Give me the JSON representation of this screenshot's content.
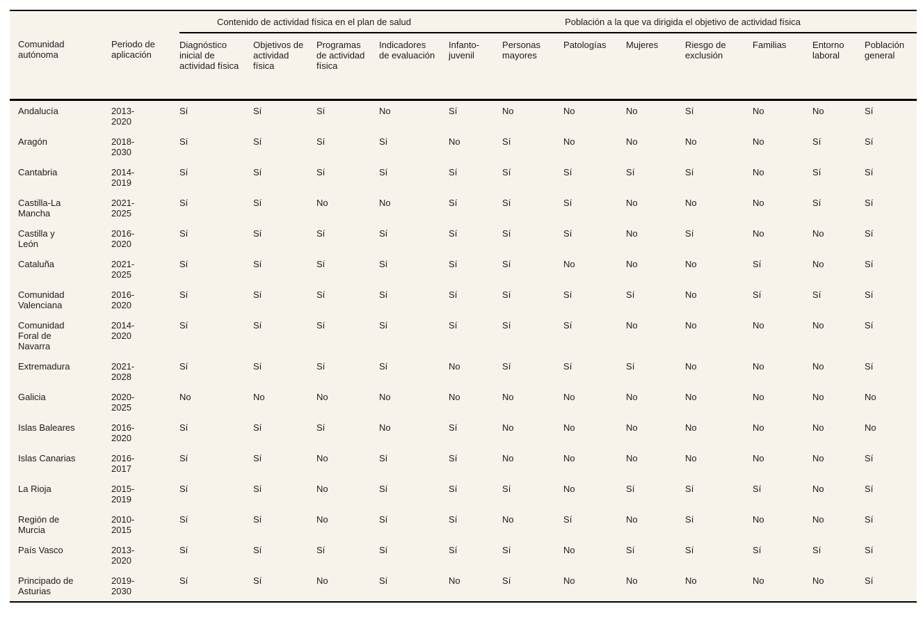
{
  "page": {
    "background_color": "#ffffff",
    "table_background_color": "#f7f3ea",
    "text_color": "#1b1b1b",
    "rule_color": "#000000"
  },
  "table": {
    "group_headers": [
      {
        "label": "Contenido de actividad física en el plan de salud",
        "colspan": 4
      },
      {
        "label": "Población a la que va dirigida el objetivo de actividad física",
        "colspan": 8
      }
    ],
    "columns": [
      {
        "id": "comunidad-autonoma",
        "label": "Comunidad autónoma"
      },
      {
        "id": "periodo-aplicacion",
        "label": "Periodo de aplicación"
      },
      {
        "id": "diagnostico-inicial",
        "label": "Diagnóstico inicial de actividad física"
      },
      {
        "id": "objetivos",
        "label": "Objetivos de actividad física"
      },
      {
        "id": "programas",
        "label": "Programas de actividad física"
      },
      {
        "id": "indicadores",
        "label": "Indicadores de evaluación"
      },
      {
        "id": "infanto-juvenil",
        "label": "Infanto-juvenil"
      },
      {
        "id": "personas-mayores",
        "label": "Personas mayores"
      },
      {
        "id": "patologias",
        "label": "Patologías"
      },
      {
        "id": "mujeres",
        "label": "Mujeres"
      },
      {
        "id": "riesgo-exclusion",
        "label": "Riesgo de exclusión"
      },
      {
        "id": "familias",
        "label": "Familias"
      },
      {
        "id": "entorno-laboral",
        "label": "Entorno laboral"
      },
      {
        "id": "poblacion-general",
        "label": "Población general"
      }
    ],
    "rows": [
      {
        "community": "Andalucía",
        "period": "2013-2020",
        "values": [
          "Sí",
          "Sí",
          "Sí",
          "No",
          "Sí",
          "No",
          "No",
          "No",
          "Sí",
          "No",
          "No",
          "Sí"
        ]
      },
      {
        "community": "Aragón",
        "period": "2018-2030",
        "values": [
          "Sí",
          "Sí",
          "Sí",
          "Sí",
          "No",
          "Sí",
          "No",
          "No",
          "No",
          "No",
          "Sí",
          "Sí"
        ]
      },
      {
        "community": "Cantabria",
        "period": "2014-2019",
        "values": [
          "Sí",
          "Sí",
          "Sí",
          "Sí",
          "Sí",
          "Sí",
          "Sí",
          "Sí",
          "Sí",
          "No",
          "Sí",
          "Sí"
        ]
      },
      {
        "community": "Castilla-La Mancha",
        "period": "2021-2025",
        "values": [
          "Sí",
          "Sí",
          "No",
          "No",
          "Sí",
          "Sí",
          "Sí",
          "No",
          "No",
          "No",
          "Sí",
          "Sí"
        ]
      },
      {
        "community": "Castilla y León",
        "period": "2016-2020",
        "values": [
          "Sí",
          "Sí",
          "Sí",
          "Sí",
          "Sí",
          "Sí",
          "Sí",
          "No",
          "Sí",
          "No",
          "No",
          "Sí"
        ]
      },
      {
        "community": "Cataluña",
        "period": "2021-2025",
        "values": [
          "Sí",
          "Sí",
          "Sí",
          "Sí",
          "Sí",
          "Sí",
          "No",
          "No",
          "No",
          "Sí",
          "No",
          "Sí"
        ]
      },
      {
        "community": "Comunidad Valenciana",
        "period": "2016-2020",
        "values": [
          "Sí",
          "Sí",
          "Sí",
          "Sí",
          "Sí",
          "Sí",
          "Sí",
          "Sí",
          "No",
          "Sí",
          "Sí",
          "Sí"
        ]
      },
      {
        "community": "Comunidad Foral de Navarra",
        "period": "2014-2020",
        "values": [
          "Sí",
          "Sí",
          "Sí",
          "Sí",
          "Sí",
          "Sí",
          "Sí",
          "No",
          "No",
          "No",
          "No",
          "Sí"
        ]
      },
      {
        "community": "Extremadura",
        "period": "2021-2028",
        "values": [
          "Sí",
          "Sí",
          "Sí",
          "Sí",
          "No",
          "Sí",
          "Sí",
          "Sí",
          "No",
          "No",
          "No",
          "Sí"
        ]
      },
      {
        "community": "Galicia",
        "period": "2020-2025",
        "values": [
          "No",
          "No",
          "No",
          "No",
          "No",
          "No",
          "No",
          "No",
          "No",
          "No",
          "No",
          "No"
        ]
      },
      {
        "community": "Islas Baleares",
        "period": "2016-2020",
        "values": [
          "Sí",
          "Sí",
          "Sí",
          "No",
          "Sí",
          "No",
          "No",
          "No",
          "No",
          "No",
          "No",
          "No"
        ]
      },
      {
        "community": "Islas Canarias",
        "period": "2016-2017",
        "values": [
          "Sí",
          "Sí",
          "No",
          "Sí",
          "Sí",
          "No",
          "No",
          "No",
          "No",
          "No",
          "No",
          "Sí"
        ]
      },
      {
        "community": "La Rioja",
        "period": "2015-2019",
        "values": [
          "Sí",
          "Sí",
          "No",
          "Sí",
          "Sí",
          "Sí",
          "No",
          "Sí",
          "Sí",
          "Sí",
          "No",
          "Sí"
        ]
      },
      {
        "community": "Región de Murcia",
        "period": "2010-2015",
        "values": [
          "Sí",
          "Sí",
          "No",
          "Sí",
          "Sí",
          "No",
          "Sí",
          "No",
          "Sí",
          "No",
          "No",
          "Sí"
        ]
      },
      {
        "community": "País Vasco",
        "period": "2013-2020",
        "values": [
          "Sí",
          "Sí",
          "Sí",
          "Sí",
          "Sí",
          "Sí",
          "No",
          "Sí",
          "Sí",
          "Sí",
          "Sí",
          "Sí"
        ]
      },
      {
        "community": "Principado de Asturias",
        "period": "2019-2030",
        "values": [
          "Sí",
          "Sí",
          "No",
          "Sí",
          "No",
          "Sí",
          "No",
          "No",
          "No",
          "No",
          "No",
          "Sí"
        ]
      }
    ]
  }
}
